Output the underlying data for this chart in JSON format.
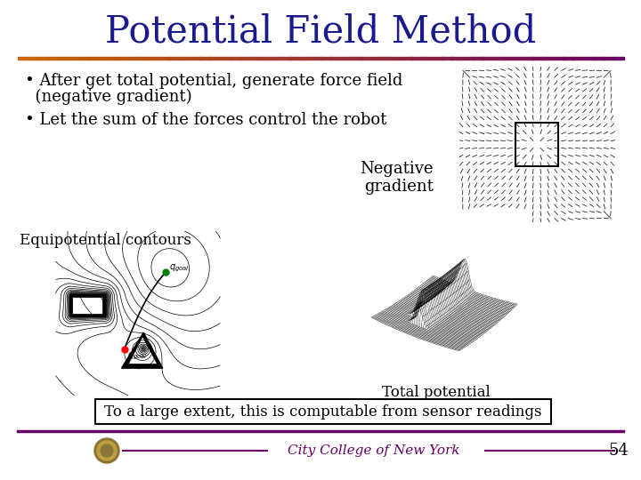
{
  "title": "Potential Field Method",
  "title_color": "#1a1a8c",
  "title_fontsize": 30,
  "bg_color": "#ffffff",
  "bullet1_line1": "• After get total potential, generate force field",
  "bullet1_line2": "  (negative gradient)",
  "bullet2": "• Let the sum of the forces control the robot",
  "label_neg_grad": "Negative\ngradient",
  "label_equipo": "Equipotential contours",
  "label_total": "Total potential",
  "bottom_text": "To a large extent, this is computable from sensor readings",
  "footer_text": "City College of New York",
  "page_num": "54",
  "rule_color_left": "#cc6600",
  "rule_color_right": "#660066",
  "text_color": "#000000",
  "bullet_fontsize": 13,
  "label_fontsize": 12,
  "footer_fontsize": 11
}
